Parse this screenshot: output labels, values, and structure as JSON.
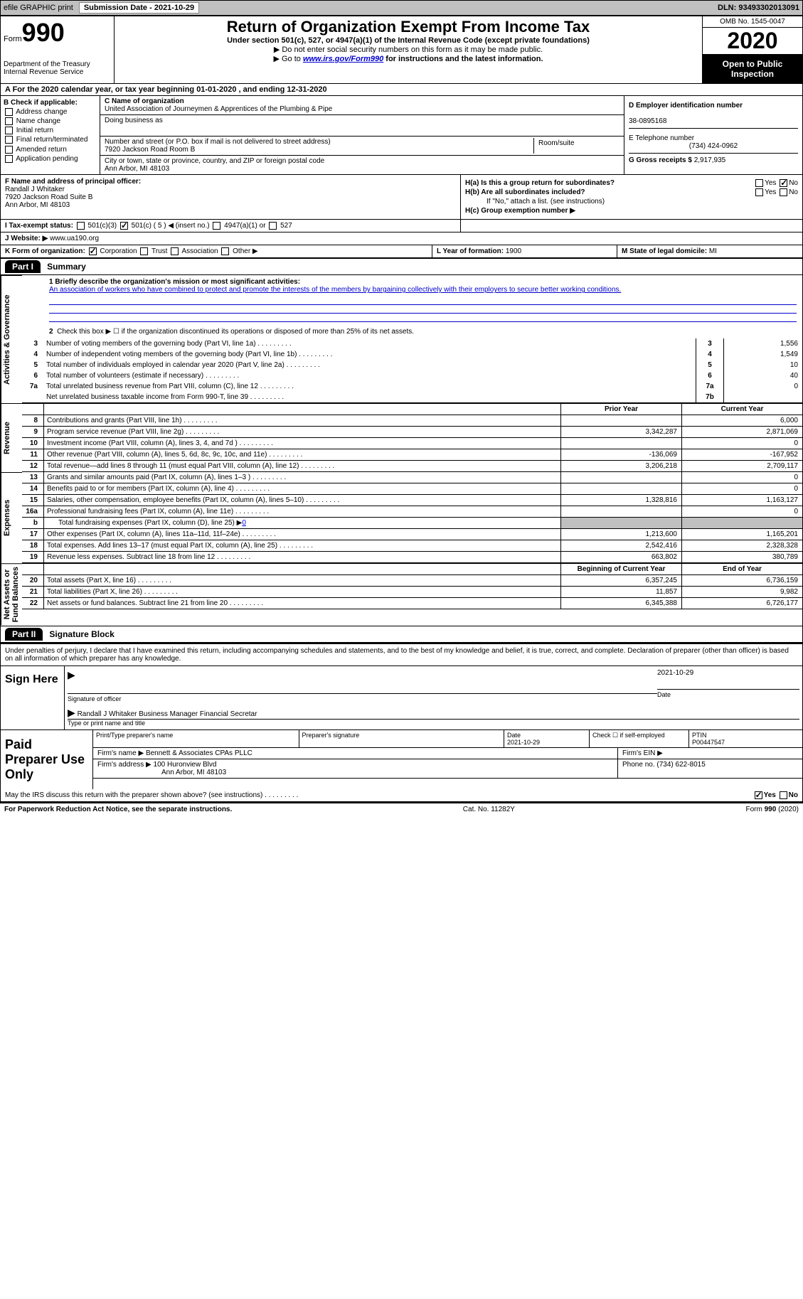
{
  "header": {
    "efile": "efile GRAPHIC print",
    "submission": "Submission Date - 2021-10-29",
    "dln": "DLN: 93493302013091"
  },
  "form": {
    "form_word": "Form",
    "num": "990",
    "title": "Return of Organization Exempt From Income Tax",
    "subtitle": "Under section 501(c), 527, or 4947(a)(1) of the Internal Revenue Code (except private foundations)",
    "warn": "▶ Do not enter social security numbers on this form as it may be made public.",
    "goto_pre": "▶ Go to ",
    "goto_link": "www.irs.gov/Form990",
    "goto_post": " for instructions and the latest information.",
    "dept": "Department of the Treasury\nInternal Revenue Service",
    "omb": "OMB No. 1545-0047",
    "year": "2020",
    "open": "Open to Public Inspection"
  },
  "rowA": "A For the 2020 calendar year, or tax year beginning 01-01-2020   , and ending 12-31-2020",
  "B": {
    "head": "B Check if applicable:",
    "opts": [
      "Address change",
      "Name change",
      "Initial return",
      "Final return/terminated",
      "Amended return",
      "Application pending"
    ]
  },
  "C": {
    "label": "C Name of organization",
    "name": "United Association of Journeymen & Apprentices of the Plumbing & Pipe",
    "dba_label": "Doing business as",
    "street_label": "Number and street (or P.O. box if mail is not delivered to street address)",
    "room_label": "Room/suite",
    "street": "7920 Jackson Road Room B",
    "city_label": "City or town, state or province, country, and ZIP or foreign postal code",
    "city": "Ann Arbor, MI  48103"
  },
  "D": {
    "label": "D Employer identification number",
    "val": "38-0895168"
  },
  "E": {
    "label": "E Telephone number",
    "val": "(734) 424-0962"
  },
  "G": {
    "label": "G Gross receipts $",
    "val": "2,917,935"
  },
  "F": {
    "label": "F  Name and address of principal officer:",
    "name": "Randall J Whitaker",
    "addr1": "7920 Jackson Road Suite B",
    "addr2": "Ann Arbor, MI  48103"
  },
  "H": {
    "a": "H(a)  Is this a group return for subordinates?",
    "b": "H(b)  Are all subordinates included?",
    "note": "If \"No,\" attach a list. (see instructions)",
    "c": "H(c)  Group exemption number ▶",
    "yes": "Yes",
    "no": "No"
  },
  "I": {
    "label": "I   Tax-exempt status:",
    "o1": "501(c)(3)",
    "o2": "501(c) ( 5 ) ◀ (insert no.)",
    "o3": "4947(a)(1) or",
    "o4": "527"
  },
  "J": {
    "label": "J  Website: ▶",
    "val": "  www.ua190.org"
  },
  "K": {
    "label": "K Form of organization:",
    "o1": "Corporation",
    "o2": "Trust",
    "o3": "Association",
    "o4": "Other ▶"
  },
  "L": {
    "label": "L Year of formation:",
    "val": "1900"
  },
  "M": {
    "label": "M State of legal domicile:",
    "val": "MI"
  },
  "parts": {
    "p1": "Part I",
    "p1t": "Summary",
    "p2": "Part II",
    "p2t": "Signature Block"
  },
  "mission_q": "1  Briefly describe the organization's mission or most significant activities:",
  "mission": "An association of workers who have combined to protect and promote the interests of the members by bargaining collectively with their employers to secure better working conditions.",
  "line2": "Check this box ▶ ☐  if the organization discontinued its operations or disposed of more than 25% of its net assets.",
  "gov_rows": [
    {
      "n": "3",
      "t": "Number of voting members of the governing body (Part VI, line 1a)",
      "b": "3",
      "v": "1,556"
    },
    {
      "n": "4",
      "t": "Number of independent voting members of the governing body (Part VI, line 1b)",
      "b": "4",
      "v": "1,549"
    },
    {
      "n": "5",
      "t": "Total number of individuals employed in calendar year 2020 (Part V, line 2a)",
      "b": "5",
      "v": "10"
    },
    {
      "n": "6",
      "t": "Total number of volunteers (estimate if necessary)",
      "b": "6",
      "v": "40"
    },
    {
      "n": "7a",
      "t": "Total unrelated business revenue from Part VIII, column (C), line 12",
      "b": "7a",
      "v": "0"
    },
    {
      "n": "",
      "t": "Net unrelated business taxable income from Form 990-T, line 39",
      "b": "7b",
      "v": ""
    }
  ],
  "fin_head": {
    "py": "Prior Year",
    "cy": "Current Year"
  },
  "rev_rows": [
    {
      "n": "8",
      "t": "Contributions and grants (Part VIII, line 1h)",
      "py": "",
      "cy": "6,000"
    },
    {
      "n": "9",
      "t": "Program service revenue (Part VIII, line 2g)",
      "py": "3,342,287",
      "cy": "2,871,069"
    },
    {
      "n": "10",
      "t": "Investment income (Part VIII, column (A), lines 3, 4, and 7d )",
      "py": "",
      "cy": "0"
    },
    {
      "n": "11",
      "t": "Other revenue (Part VIII, column (A), lines 5, 6d, 8c, 9c, 10c, and 11e)",
      "py": "-136,069",
      "cy": "-167,952"
    },
    {
      "n": "12",
      "t": "Total revenue—add lines 8 through 11 (must equal Part VIII, column (A), line 12)",
      "py": "3,206,218",
      "cy": "2,709,117"
    }
  ],
  "exp_rows": [
    {
      "n": "13",
      "t": "Grants and similar amounts paid (Part IX, column (A), lines 1–3 )",
      "py": "",
      "cy": "0"
    },
    {
      "n": "14",
      "t": "Benefits paid to or for members (Part IX, column (A), line 4)",
      "py": "",
      "cy": "0"
    },
    {
      "n": "15",
      "t": "Salaries, other compensation, employee benefits (Part IX, column (A), lines 5–10)",
      "py": "1,328,816",
      "cy": "1,163,127"
    },
    {
      "n": "16a",
      "t": "Professional fundraising fees (Part IX, column (A), line 11e)",
      "py": "",
      "cy": "0"
    }
  ],
  "exp_b": {
    "n": "b",
    "t": "Total fundraising expenses (Part IX, column (D), line 25) ▶",
    "link": "0"
  },
  "exp_rows2": [
    {
      "n": "17",
      "t": "Other expenses (Part IX, column (A), lines 11a–11d, 11f–24e)",
      "py": "1,213,600",
      "cy": "1,165,201"
    },
    {
      "n": "18",
      "t": "Total expenses. Add lines 13–17 (must equal Part IX, column (A), line 25)",
      "py": "2,542,416",
      "cy": "2,328,328"
    },
    {
      "n": "19",
      "t": "Revenue less expenses. Subtract line 18 from line 12",
      "py": "663,802",
      "cy": "380,789"
    }
  ],
  "na_head": {
    "b": "Beginning of Current Year",
    "e": "End of Year"
  },
  "na_rows": [
    {
      "n": "20",
      "t": "Total assets (Part X, line 16)",
      "py": "6,357,245",
      "cy": "6,736,159"
    },
    {
      "n": "21",
      "t": "Total liabilities (Part X, line 26)",
      "py": "11,857",
      "cy": "9,982"
    },
    {
      "n": "22",
      "t": "Net assets or fund balances. Subtract line 21 from line 20",
      "py": "6,345,388",
      "cy": "6,726,177"
    }
  ],
  "sidelabels": {
    "ag": "Activities & Governance",
    "rev": "Revenue",
    "exp": "Expenses",
    "na": "Net Assets or\nFund Balances"
  },
  "sig": {
    "penalty": "Under penalties of perjury, I declare that I have examined this return, including accompanying schedules and statements, and to the best of my knowledge and belief, it is true, correct, and complete. Declaration of preparer (other than officer) is based on all information of which preparer has any knowledge.",
    "sign_here": "Sign Here",
    "sigoff": "Signature of officer",
    "date_lbl": "Date",
    "date": "2021-10-29",
    "name": "Randall J Whitaker Business Manager Financial Secretar",
    "typelbl": "Type or print name and title"
  },
  "paid": {
    "lab": "Paid Preparer Use Only",
    "h1": "Print/Type preparer's name",
    "h2": "Preparer's signature",
    "h3": "Date",
    "h3v": "2021-10-29",
    "h4": "Check ☐ if self-employed",
    "h5": "PTIN",
    "h5v": "P00447547",
    "firmname_l": "Firm's name    ▶",
    "firmname": "Bennett & Associates CPAs PLLC",
    "ein_l": "Firm's EIN ▶",
    "firmaddr_l": "Firm's address ▶",
    "firmaddr": "100 Huronview Blvd",
    "firmcity": "Ann Arbor, MI  48103",
    "phone_l": "Phone no.",
    "phone": "(734) 622-8015"
  },
  "discuss": "May the IRS discuss this return with the preparer shown above? (see instructions)",
  "footer": {
    "left": "For Paperwork Reduction Act Notice, see the separate instructions.",
    "mid": "Cat. No. 11282Y",
    "right": "Form 990 (2020)"
  }
}
